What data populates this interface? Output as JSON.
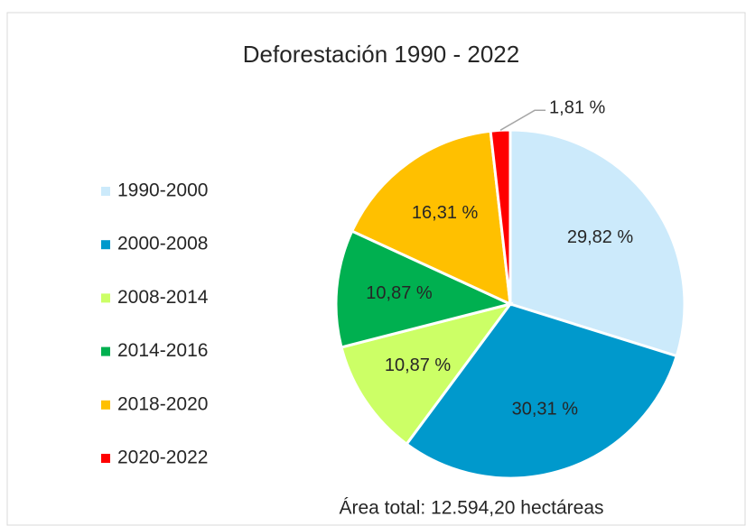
{
  "chart_data": {
    "type": "pie",
    "title": "Deforestación 1990 - 2022",
    "categories": [
      "1990-2000",
      "2000-2008",
      "2008-2014",
      "2014-2016",
      "2018-2020",
      "2020-2022"
    ],
    "values": [
      29.82,
      30.31,
      10.87,
      10.87,
      16.31,
      1.81
    ],
    "value_labels": [
      "29,82 %",
      "30,31 %",
      "10,87 %",
      "10,87 %",
      "16,31 %",
      "1,81 %"
    ],
    "colors": [
      "#cceafb",
      "#0099cc",
      "#ccff66",
      "#00b050",
      "#ffc000",
      "#ff0000"
    ],
    "annotation": "Área total: 12.594,20 hectáreas",
    "legend": "left"
  }
}
